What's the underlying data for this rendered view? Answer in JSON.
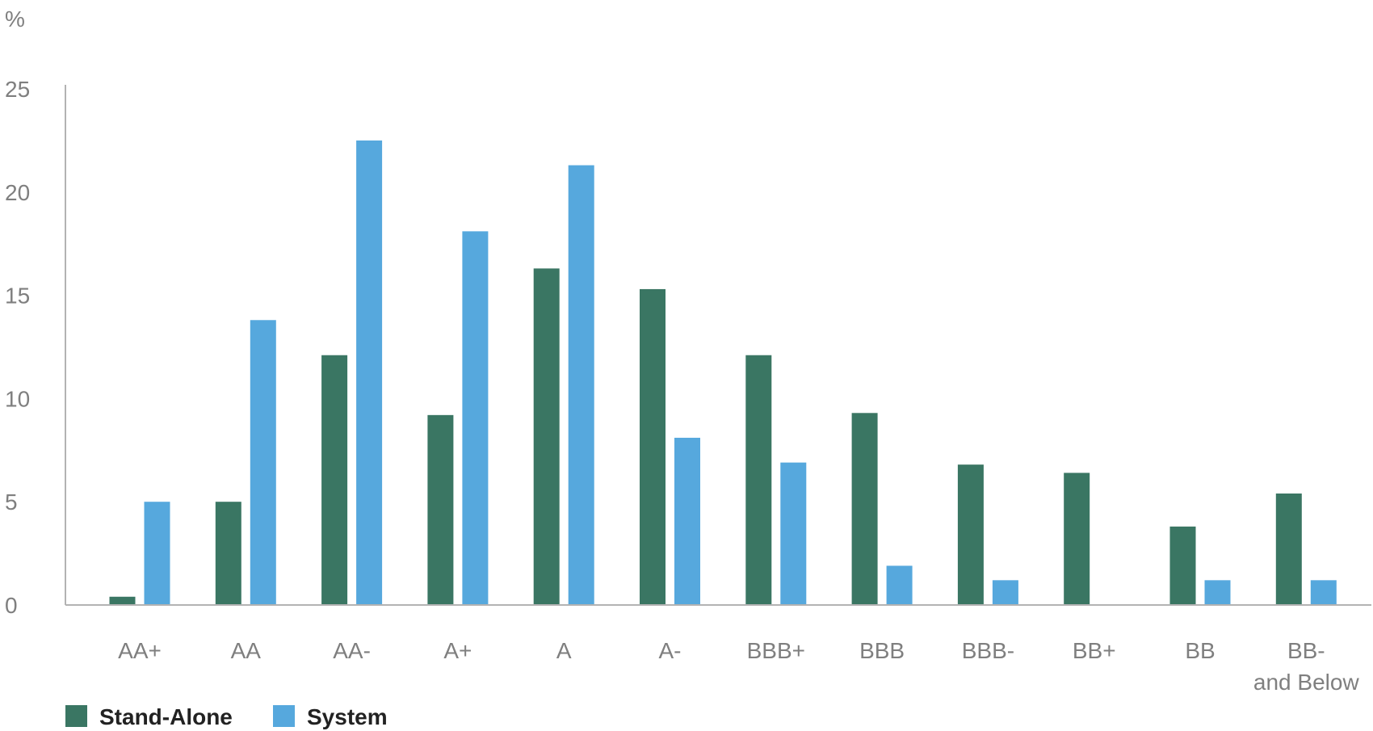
{
  "chart_data": {
    "type": "bar",
    "title": "",
    "ylabel": "%",
    "xlabel": "",
    "ylim": [
      0,
      25
    ],
    "yticks": [
      0,
      5,
      10,
      15,
      20,
      25
    ],
    "grid": false,
    "legend_position": "bottom-left",
    "categories": [
      [
        "AA+"
      ],
      [
        "AA"
      ],
      [
        "AA-"
      ],
      [
        "A+"
      ],
      [
        "A"
      ],
      [
        "A-"
      ],
      [
        "BBB+"
      ],
      [
        "BBB"
      ],
      [
        "BBB-"
      ],
      [
        "BB+"
      ],
      [
        "BB"
      ],
      [
        "BB-",
        "and Below"
      ]
    ],
    "series": [
      {
        "name": "Stand-Alone",
        "color": "#3a7663",
        "values": [
          0.4,
          5.0,
          12.1,
          9.2,
          16.3,
          15.3,
          12.1,
          9.3,
          6.8,
          6.4,
          3.8,
          5.4
        ]
      },
      {
        "name": "System",
        "color": "#56a8dd",
        "values": [
          5.0,
          13.8,
          22.5,
          18.1,
          21.3,
          8.1,
          6.9,
          1.9,
          1.2,
          0,
          1.2,
          1.2
        ]
      }
    ]
  }
}
